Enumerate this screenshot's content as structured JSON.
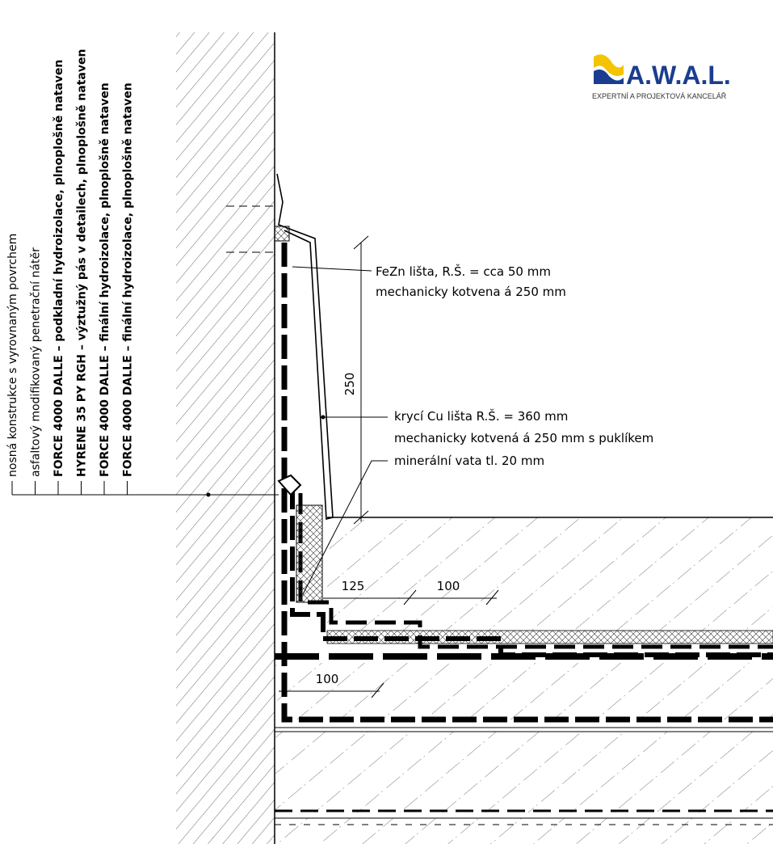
{
  "logo": {
    "name": "A.W.A.L.",
    "subtitle": "EXPERTNÍ A PROJEKTOVÁ KANCELÁŘ"
  },
  "layers": [
    "nosná konstrukce s vyrovnaným povrchem",
    "asfaltový modifikovaný penetrační nátěr",
    "FORCE 4000 DALLE – podkladní hydroizolace, plnoplošně nataven",
    "HYRENE 35 PY RGH – výztužný pás v detailech, plnoplošně nataven",
    "FORCE 4000 DALLE – finální hydroizolace, plnoplošně nataven",
    "FORCE 4000 DALLE – finální hydroizolace, plnoplošně nataven"
  ],
  "annotations": {
    "fezn": [
      "FeZn lišta, R.Š. = cca 50 mm",
      "mechanicky kotvena á 250 mm"
    ],
    "cu": [
      "krycí Cu lišta R.Š. = 360 mm",
      "mechanicky kotvená á 250 mm s puklíkem"
    ],
    "wool": "minerální vata tl. 20 mm"
  },
  "dimensions": {
    "height": "250",
    "lap_a": "125",
    "lap_b": "100",
    "lap_c": "100"
  }
}
